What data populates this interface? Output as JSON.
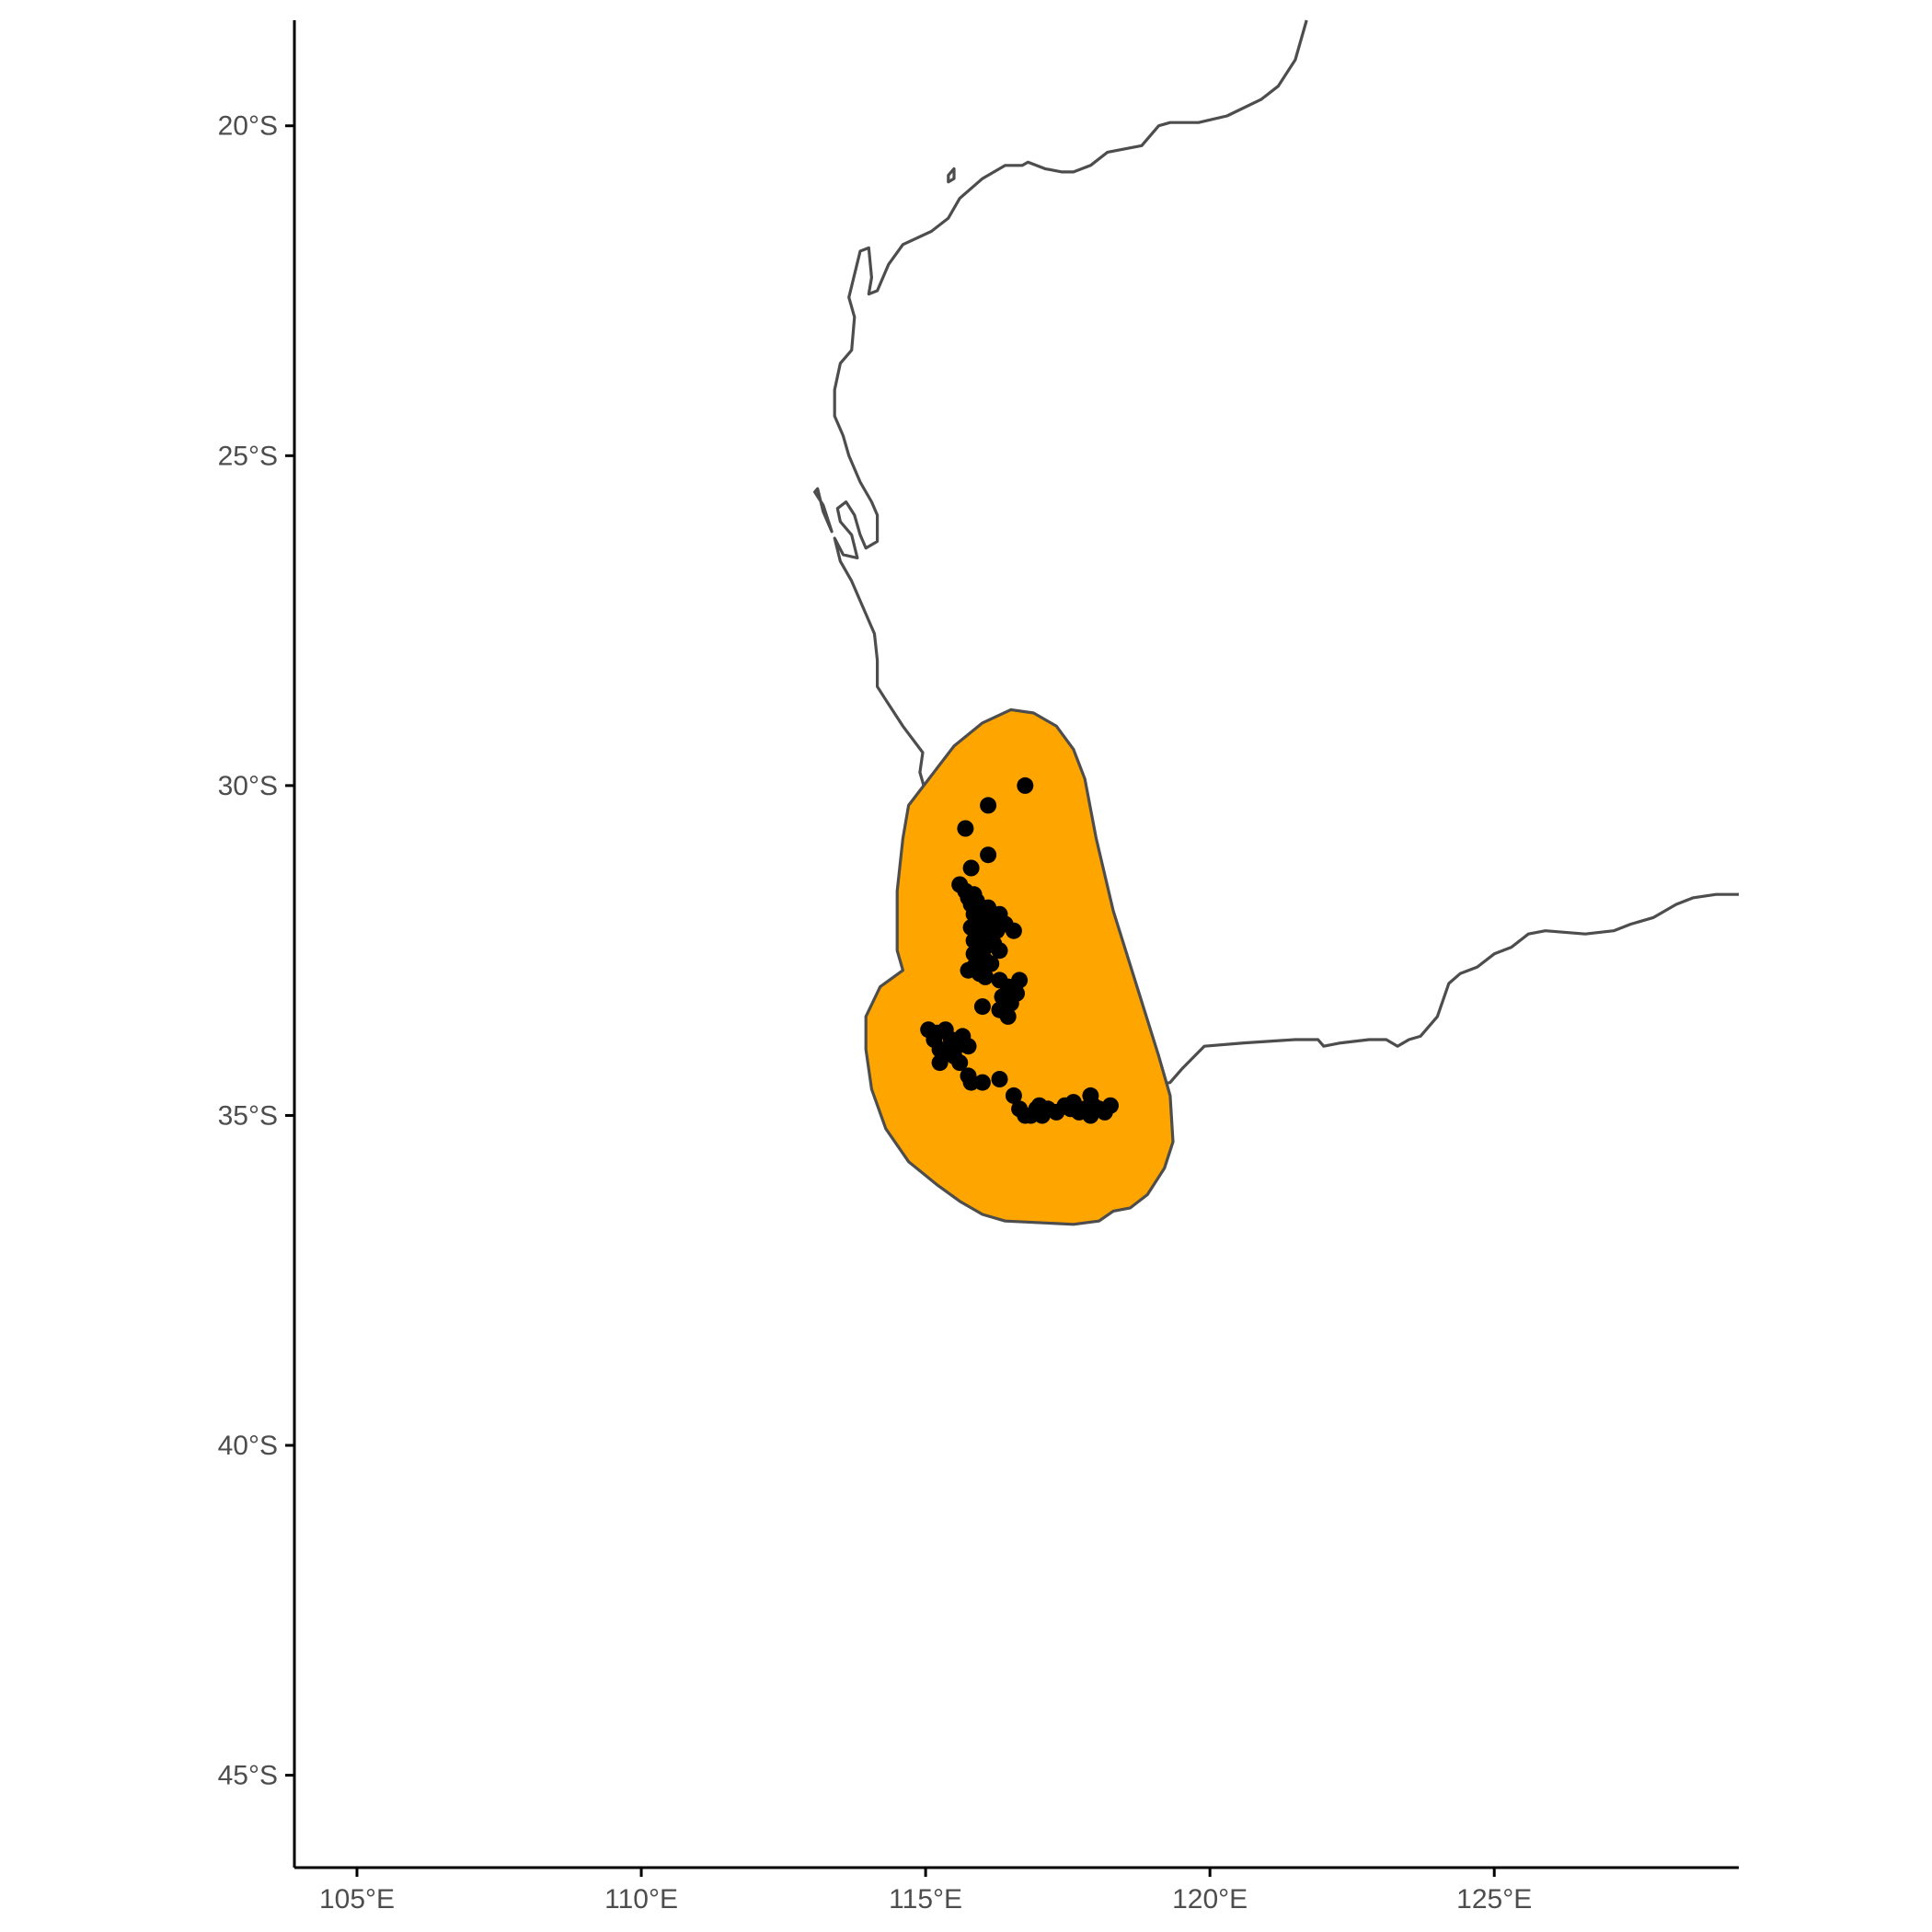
{
  "chart_data": {
    "type": "scatter",
    "title": "",
    "xlabel": "",
    "ylabel": "",
    "xlim": [
      103.9,
      129.3
    ],
    "ylim": [
      -46.4,
      -18.4
    ],
    "grid": false,
    "x_ticks": [
      {
        "value": 105,
        "label": "105°E"
      },
      {
        "value": 110,
        "label": "110°E"
      },
      {
        "value": 115,
        "label": "115°E"
      },
      {
        "value": 120,
        "label": "120°E"
      },
      {
        "value": 125,
        "label": "125°E"
      }
    ],
    "y_ticks": [
      {
        "value": -20,
        "label": "20°S"
      },
      {
        "value": -25,
        "label": "25°S"
      },
      {
        "value": -30,
        "label": "30°S"
      },
      {
        "value": -35,
        "label": "35°S"
      },
      {
        "value": -40,
        "label": "40°S"
      },
      {
        "value": -45,
        "label": "45°S"
      }
    ],
    "colors": {
      "range_fill": "#FFA500",
      "outline": "#4d4d4d",
      "points": "#000000",
      "axis": "#000000"
    },
    "coastline_main": [
      [
        121.7,
        -18.4
      ],
      [
        121.5,
        -19.0
      ],
      [
        121.2,
        -19.4
      ],
      [
        120.9,
        -19.6
      ],
      [
        120.3,
        -19.85
      ],
      [
        119.8,
        -19.95
      ],
      [
        119.3,
        -19.95
      ],
      [
        119.1,
        -20.0
      ],
      [
        118.8,
        -20.3
      ],
      [
        118.2,
        -20.4
      ],
      [
        117.9,
        -20.6
      ],
      [
        117.6,
        -20.7
      ],
      [
        117.4,
        -20.7
      ],
      [
        117.1,
        -20.65
      ],
      [
        116.8,
        -20.55
      ],
      [
        116.7,
        -20.6
      ],
      [
        116.4,
        -20.6
      ],
      [
        116.0,
        -20.8
      ],
      [
        115.6,
        -21.1
      ],
      [
        115.4,
        -21.4
      ],
      [
        115.1,
        -21.6
      ],
      [
        114.6,
        -21.8
      ],
      [
        114.35,
        -22.1
      ],
      [
        114.15,
        -22.5
      ],
      [
        114.0,
        -22.55
      ],
      [
        114.05,
        -22.3
      ],
      [
        114.0,
        -21.85
      ],
      [
        113.85,
        -21.9
      ],
      [
        113.65,
        -22.6
      ],
      [
        113.75,
        -22.9
      ],
      [
        113.7,
        -23.4
      ],
      [
        113.5,
        -23.6
      ],
      [
        113.4,
        -24.0
      ],
      [
        113.4,
        -24.4
      ],
      [
        113.55,
        -24.7
      ],
      [
        113.65,
        -25.0
      ],
      [
        113.85,
        -25.4
      ],
      [
        114.05,
        -25.7
      ],
      [
        114.15,
        -25.9
      ],
      [
        114.15,
        -26.3
      ],
      [
        113.95,
        -26.4
      ],
      [
        113.85,
        -26.2
      ],
      [
        113.75,
        -25.9
      ],
      [
        113.6,
        -25.7
      ],
      [
        113.45,
        -25.8
      ],
      [
        113.5,
        -26.0
      ],
      [
        113.7,
        -26.2
      ],
      [
        113.8,
        -26.55
      ],
      [
        113.55,
        -26.5
      ],
      [
        113.4,
        -26.25
      ],
      [
        113.5,
        -26.6
      ],
      [
        113.7,
        -26.9
      ],
      [
        113.9,
        -27.3
      ],
      [
        114.1,
        -27.7
      ],
      [
        114.15,
        -28.1
      ],
      [
        114.15,
        -28.5
      ],
      [
        114.3,
        -28.7
      ],
      [
        114.6,
        -29.1
      ],
      [
        114.95,
        -29.5
      ],
      [
        114.9,
        -29.8
      ],
      [
        115.0,
        -30.1
      ],
      [
        115.1,
        -30.6
      ],
      [
        115.3,
        -31.2
      ],
      [
        115.5,
        -31.5
      ],
      [
        115.75,
        -31.9
      ],
      [
        115.8,
        -32.3
      ],
      [
        115.7,
        -32.7
      ],
      [
        115.65,
        -33.1
      ],
      [
        115.35,
        -33.5
      ],
      [
        115.0,
        -33.6
      ],
      [
        115.1,
        -33.8
      ],
      [
        115.5,
        -34.3
      ],
      [
        116.0,
        -34.8
      ],
      [
        116.7,
        -35.0
      ],
      [
        117.6,
        -35.1
      ],
      [
        118.0,
        -35.0
      ],
      [
        118.3,
        -34.95
      ],
      [
        118.8,
        -34.6
      ],
      [
        119.3,
        -34.5
      ],
      [
        119.5,
        -34.3
      ],
      [
        119.9,
        -33.95
      ],
      [
        120.6,
        -33.9
      ],
      [
        121.5,
        -33.85
      ],
      [
        121.9,
        -33.85
      ],
      [
        122.0,
        -33.95
      ],
      [
        122.3,
        -33.9
      ],
      [
        122.8,
        -33.85
      ],
      [
        123.1,
        -33.85
      ],
      [
        123.3,
        -33.95
      ],
      [
        123.5,
        -33.85
      ],
      [
        123.7,
        -33.8
      ],
      [
        124.0,
        -33.5
      ],
      [
        124.2,
        -33.0
      ],
      [
        124.4,
        -32.85
      ],
      [
        124.7,
        -32.75
      ],
      [
        125.0,
        -32.55
      ],
      [
        125.3,
        -32.45
      ],
      [
        125.6,
        -32.25
      ],
      [
        125.9,
        -32.2
      ],
      [
        126.6,
        -32.25
      ],
      [
        127.1,
        -32.2
      ],
      [
        127.4,
        -32.1
      ],
      [
        127.8,
        -32.0
      ],
      [
        128.2,
        -31.8
      ],
      [
        128.5,
        -31.7
      ],
      [
        128.9,
        -31.65
      ],
      [
        129.3,
        -31.65
      ]
    ],
    "coastline_islands": [
      [
        [
          113.1,
          -25.5
        ],
        [
          113.2,
          -25.85
        ],
        [
          113.35,
          -26.15
        ],
        [
          113.2,
          -25.75
        ],
        [
          113.05,
          -25.55
        ],
        [
          113.1,
          -25.5
        ]
      ],
      [
        [
          115.4,
          -20.75
        ],
        [
          115.5,
          -20.65
        ],
        [
          115.5,
          -20.8
        ],
        [
          115.4,
          -20.85
        ],
        [
          115.4,
          -20.75
        ]
      ]
    ],
    "range_polygon": [
      [
        116.5,
        -28.85
      ],
      [
        116.9,
        -28.9
      ],
      [
        117.3,
        -29.1
      ],
      [
        117.6,
        -29.45
      ],
      [
        117.8,
        -29.9
      ],
      [
        118.0,
        -30.8
      ],
      [
        118.3,
        -31.9
      ],
      [
        118.7,
        -33.0
      ],
      [
        119.1,
        -34.1
      ],
      [
        119.3,
        -34.7
      ],
      [
        119.35,
        -35.4
      ],
      [
        119.2,
        -35.8
      ],
      [
        118.9,
        -36.2
      ],
      [
        118.6,
        -36.4
      ],
      [
        118.3,
        -36.45
      ],
      [
        118.05,
        -36.6
      ],
      [
        117.6,
        -36.65
      ],
      [
        116.4,
        -36.6
      ],
      [
        116.0,
        -36.5
      ],
      [
        115.6,
        -36.3
      ],
      [
        115.2,
        -36.05
      ],
      [
        114.7,
        -35.7
      ],
      [
        114.3,
        -35.2
      ],
      [
        114.05,
        -34.6
      ],
      [
        113.95,
        -34.0
      ],
      [
        113.95,
        -33.5
      ],
      [
        114.2,
        -33.05
      ],
      [
        114.6,
        -32.8
      ],
      [
        114.5,
        -32.5
      ],
      [
        114.5,
        -31.6
      ],
      [
        114.6,
        -30.8
      ],
      [
        114.7,
        -30.3
      ],
      [
        115.1,
        -29.85
      ],
      [
        115.5,
        -29.4
      ],
      [
        116.0,
        -29.05
      ],
      [
        116.5,
        -28.85
      ]
    ],
    "points": [
      [
        116.75,
        -30.0
      ],
      [
        116.1,
        -30.3
      ],
      [
        115.7,
        -30.65
      ],
      [
        116.1,
        -31.05
      ],
      [
        115.8,
        -31.25
      ],
      [
        115.6,
        -31.5
      ],
      [
        115.7,
        -31.6
      ],
      [
        115.75,
        -31.7
      ],
      [
        115.8,
        -31.8
      ],
      [
        115.85,
        -31.65
      ],
      [
        115.9,
        -31.75
      ],
      [
        116.0,
        -31.9
      ],
      [
        116.1,
        -31.85
      ],
      [
        116.2,
        -32.0
      ],
      [
        116.3,
        -31.95
      ],
      [
        115.85,
        -31.95
      ],
      [
        115.95,
        -32.05
      ],
      [
        116.05,
        -32.1
      ],
      [
        116.15,
        -32.15
      ],
      [
        115.8,
        -32.15
      ],
      [
        115.9,
        -32.2
      ],
      [
        116.0,
        -32.25
      ],
      [
        116.1,
        -32.3
      ],
      [
        116.25,
        -32.2
      ],
      [
        116.4,
        -32.1
      ],
      [
        116.55,
        -32.2
      ],
      [
        115.85,
        -32.35
      ],
      [
        115.95,
        -32.4
      ],
      [
        116.05,
        -32.45
      ],
      [
        116.2,
        -32.4
      ],
      [
        116.3,
        -32.5
      ],
      [
        115.85,
        -32.55
      ],
      [
        115.95,
        -32.6
      ],
      [
        116.05,
        -32.65
      ],
      [
        116.15,
        -32.7
      ],
      [
        115.75,
        -32.8
      ],
      [
        115.85,
        -32.75
      ],
      [
        115.95,
        -32.85
      ],
      [
        116.05,
        -32.9
      ],
      [
        116.3,
        -32.95
      ],
      [
        116.45,
        -33.05
      ],
      [
        116.6,
        -33.15
      ],
      [
        116.65,
        -32.95
      ],
      [
        116.35,
        -33.2
      ],
      [
        116.5,
        -33.3
      ],
      [
        116.0,
        -33.35
      ],
      [
        116.45,
        -33.5
      ],
      [
        116.3,
        -33.4
      ],
      [
        115.05,
        -33.7
      ],
      [
        115.2,
        -33.75
      ],
      [
        115.35,
        -33.7
      ],
      [
        115.45,
        -33.85
      ],
      [
        115.55,
        -33.95
      ],
      [
        115.65,
        -33.8
      ],
      [
        115.75,
        -33.95
      ],
      [
        115.15,
        -33.85
      ],
      [
        115.25,
        -34.0
      ],
      [
        115.5,
        -34.1
      ],
      [
        115.35,
        -34.05
      ],
      [
        115.25,
        -34.2
      ],
      [
        115.6,
        -34.2
      ],
      [
        115.75,
        -34.4
      ],
      [
        115.8,
        -34.5
      ],
      [
        116.0,
        -34.5
      ],
      [
        116.3,
        -34.45
      ],
      [
        116.55,
        -34.7
      ],
      [
        116.65,
        -34.9
      ],
      [
        116.75,
        -35.0
      ],
      [
        116.85,
        -35.0
      ],
      [
        116.95,
        -34.9
      ],
      [
        117.05,
        -35.0
      ],
      [
        117.15,
        -34.9
      ],
      [
        117.3,
        -34.95
      ],
      [
        117.45,
        -34.85
      ],
      [
        117.55,
        -34.9
      ],
      [
        117.7,
        -34.95
      ],
      [
        117.8,
        -34.9
      ],
      [
        117.9,
        -35.0
      ],
      [
        117.95,
        -34.85
      ],
      [
        118.05,
        -34.9
      ],
      [
        118.15,
        -34.95
      ],
      [
        118.25,
        -34.85
      ],
      [
        117.9,
        -34.7
      ],
      [
        117.6,
        -34.8
      ],
      [
        117.0,
        -34.85
      ]
    ]
  }
}
